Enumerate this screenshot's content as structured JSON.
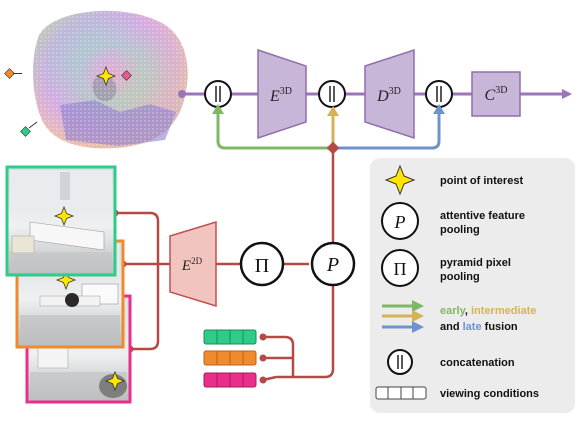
{
  "blocks": {
    "enc3d": {
      "base": "E",
      "sup": "3D"
    },
    "dec3d": {
      "base": "D",
      "sup": "3D"
    },
    "cls3d": {
      "base": "C",
      "sup": "3D"
    },
    "enc2d": {
      "base": "E",
      "sup": "2D"
    },
    "pooling_symbol": "P",
    "pyramid_symbol": "Π",
    "concat_symbol": "||"
  },
  "legend": {
    "poi": "point of interest",
    "afp_line1": "attentive feature",
    "afp_line2": "pooling",
    "ppp_line1": "pyramid pixel",
    "ppp_line2": "pooling",
    "fusion_early": "early",
    "fusion_comma": ", ",
    "fusion_intermediate": "intermediate",
    "fusion_and": "and ",
    "fusion_late": "late",
    "fusion_tail": " fusion",
    "concatenation": "concatenation",
    "viewing_conditions": "viewing conditions"
  },
  "colors": {
    "block3d_fill": "#c8b6d9",
    "block3d_stroke": "#8f6fab",
    "block2d_fill": "#f2c4c0",
    "block2d_stroke": "#c0504d",
    "line_red": "#b54a45",
    "line_purple": "#9a76b6",
    "early": "#7fb865",
    "intermediate": "#d4b25a",
    "late": "#6e93cc",
    "poi_star": "#ffe600",
    "view_green": "#2ecc8a",
    "view_orange": "#f08a2c",
    "view_pink": "#ea2f8a",
    "legend_bg": "#ececec"
  }
}
